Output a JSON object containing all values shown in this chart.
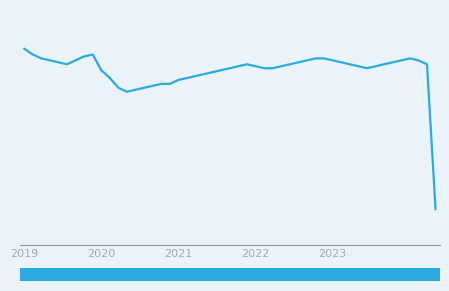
{
  "line_color": "#29ABE2",
  "bg_color": "#EAF2FA",
  "line_width": 1.6,
  "x_tick_labels": [
    "2019",
    "2020",
    "2021",
    "2022",
    "2023"
  ],
  "x_values": [
    0,
    1,
    2,
    3,
    4,
    5,
    6,
    7,
    8,
    9,
    10,
    11,
    12,
    13,
    14,
    15,
    16,
    17,
    18,
    19,
    20,
    21,
    22,
    23,
    24,
    25,
    26,
    27,
    28,
    29,
    30,
    31,
    32,
    33,
    34,
    35,
    36,
    37,
    38,
    39,
    40,
    41,
    42,
    43,
    44,
    45,
    46,
    47,
    48
  ],
  "y_values": [
    100,
    97,
    95,
    94,
    93,
    92,
    94,
    96,
    97,
    89,
    85,
    80,
    78,
    79,
    80,
    81,
    82,
    82,
    84,
    85,
    86,
    87,
    88,
    89,
    90,
    91,
    92,
    91,
    90,
    90,
    91,
    92,
    93,
    94,
    95,
    95,
    94,
    93,
    92,
    91,
    90,
    91,
    92,
    93,
    94,
    95,
    94,
    92,
    18
  ],
  "ylim": [
    0,
    120
  ],
  "grid_color": "#BBBBCC",
  "axis_line_color": "#999999",
  "tick_label_color": "#AAAAAA",
  "tick_label_size": 8,
  "bottom_bar_color": "#29ABE2",
  "year_x_positions": [
    0,
    9,
    18,
    27,
    36
  ]
}
